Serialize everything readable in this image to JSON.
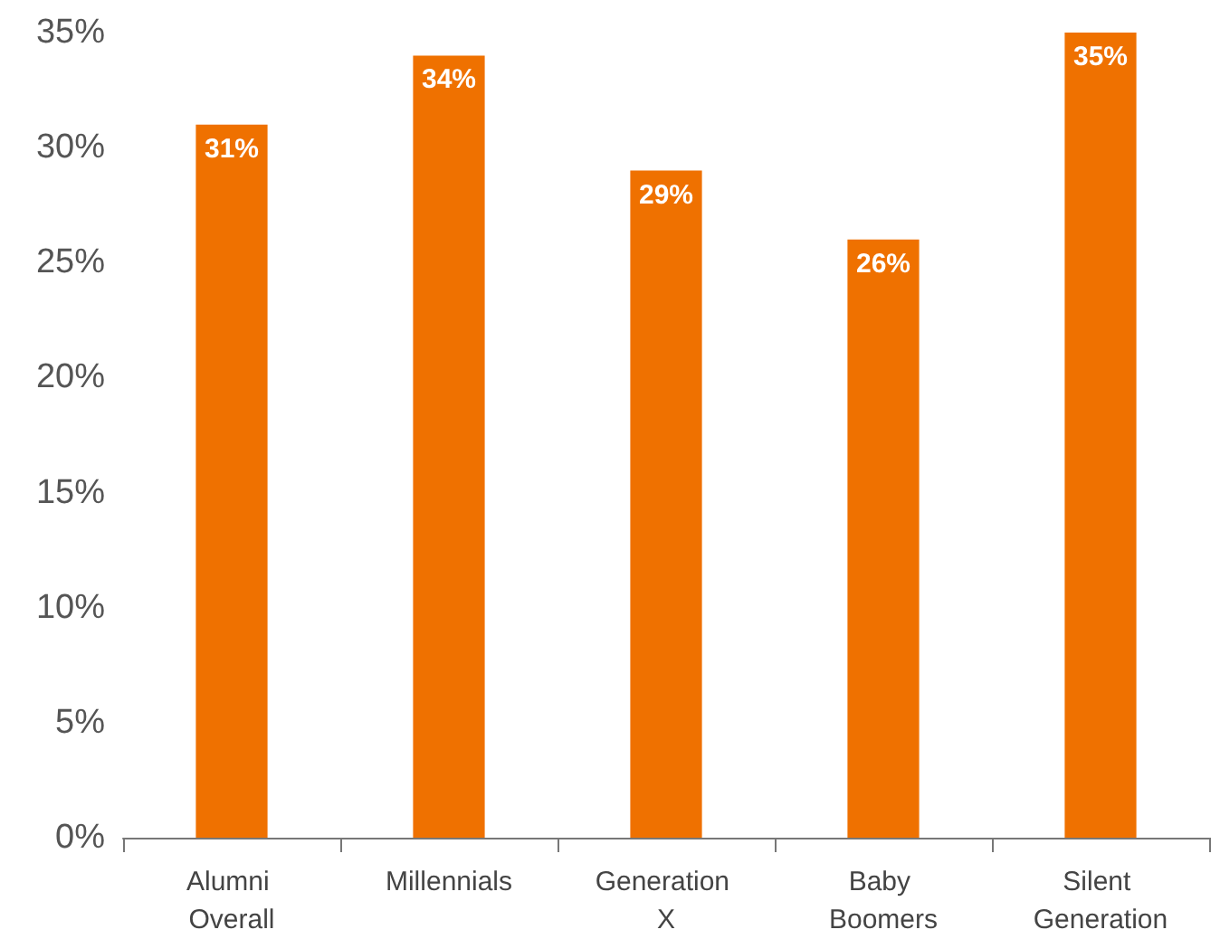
{
  "chart_data": {
    "type": "bar",
    "categories": [
      "Alumni Overall",
      "Millennials",
      "Generation X",
      "Baby Boomers",
      "Silent Generation"
    ],
    "values": [
      31,
      34,
      29,
      26,
      35
    ],
    "value_labels": [
      "31%",
      "34%",
      "29%",
      "26%",
      "35%"
    ],
    "color": "#ef7100",
    "ylim": [
      0,
      35
    ],
    "yticks": [
      {
        "value": 0,
        "label": "0%"
      },
      {
        "value": 5,
        "label": "5%"
      },
      {
        "value": 10,
        "label": "10%"
      },
      {
        "value": 15,
        "label": "15%"
      },
      {
        "value": 20,
        "label": "20%"
      },
      {
        "value": 25,
        "label": "25%"
      },
      {
        "value": 30,
        "label": "30%"
      },
      {
        "value": 35,
        "label": "35%"
      }
    ]
  }
}
